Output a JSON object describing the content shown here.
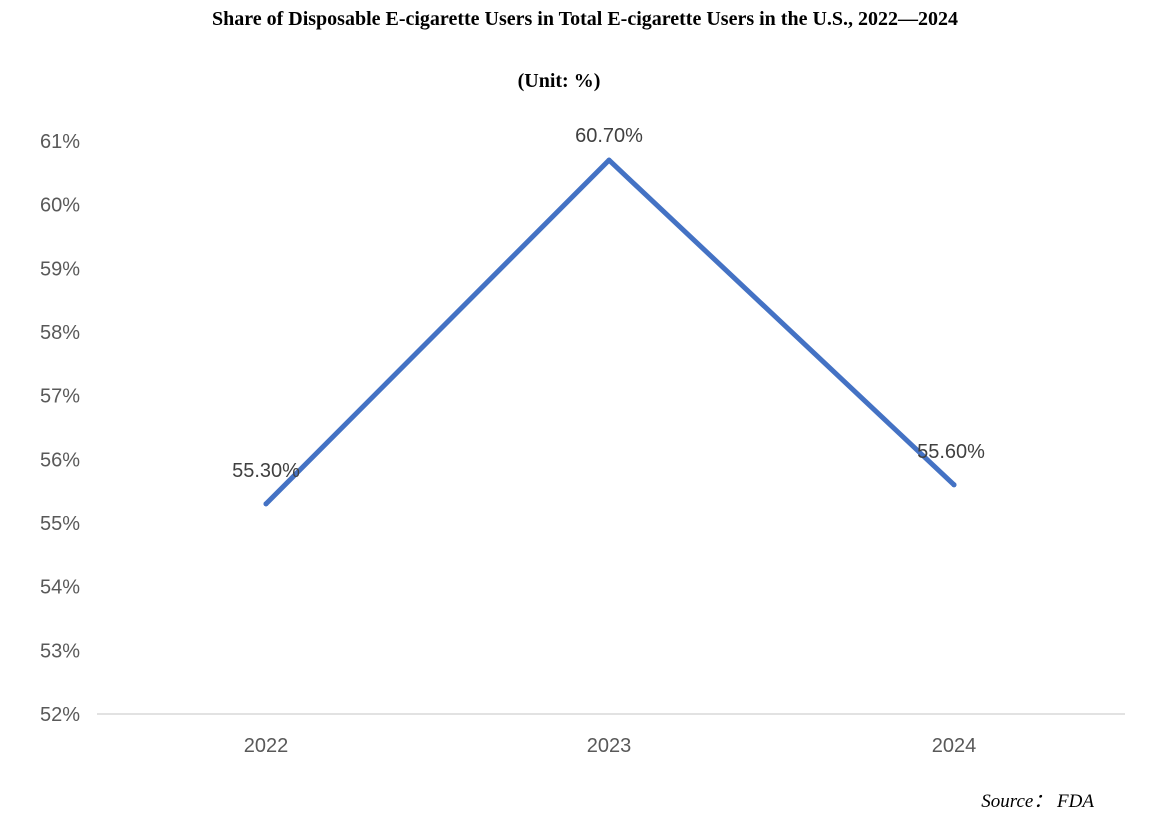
{
  "chart_data": {
    "type": "line",
    "title": "Share of Disposable E-cigarette Users in Total E-cigarette Users in the U.S., 2022—2024",
    "subtitle": "(Unit: %)",
    "source": "Source： FDA",
    "xlabel": "",
    "ylabel": "",
    "categories": [
      "2022",
      "2023",
      "2024"
    ],
    "series": [
      {
        "name": "Share of disposable e-cigarette users",
        "values": [
          55.3,
          60.7,
          55.6
        ],
        "labels": [
          "55.30%",
          "60.70%",
          "55.60%"
        ],
        "color": "#4472C4"
      }
    ],
    "ylim": [
      52,
      61
    ],
    "yticks": [
      "52%",
      "53%",
      "54%",
      "55%",
      "56%",
      "57%",
      "58%",
      "59%",
      "60%",
      "61%"
    ],
    "grid": false,
    "legend": "none"
  }
}
